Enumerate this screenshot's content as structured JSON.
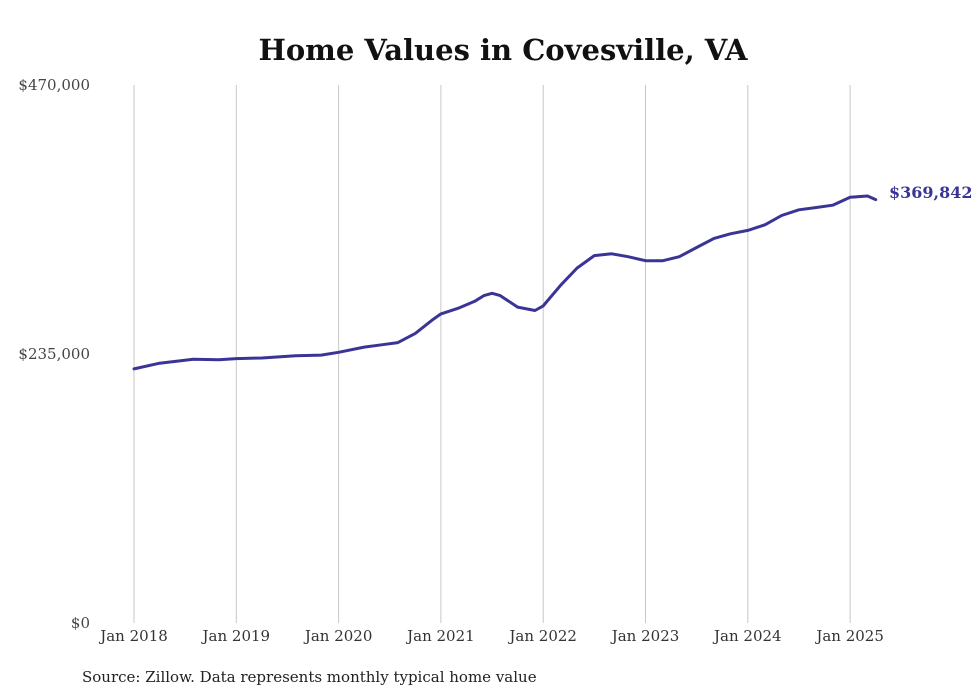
{
  "chart_data": {
    "type": "line",
    "title": "Home Values in Covesville, VA",
    "xlabel": "",
    "ylabel": "",
    "ylim": [
      0,
      470000
    ],
    "y_ticks": [
      "$0",
      "$235,000",
      "$470,000"
    ],
    "x_ticks": [
      "Jan 2018",
      "Jan 2019",
      "Jan 2020",
      "Jan 2021",
      "Jan 2022",
      "Jan 2023",
      "Jan 2024",
      "Jan 2025"
    ],
    "grid": "vertical",
    "line_color": "#3a3497",
    "end_label": "$369,842",
    "series": [
      {
        "values": [
          [
            2018.0,
            222000
          ],
          [
            2018.25,
            227000
          ],
          [
            2018.58,
            230500
          ],
          [
            2018.83,
            230000
          ],
          [
            2019.0,
            231000
          ],
          [
            2019.25,
            231500
          ],
          [
            2019.58,
            233500
          ],
          [
            2019.83,
            234000
          ],
          [
            2020.0,
            236500
          ],
          [
            2020.25,
            241000
          ],
          [
            2020.42,
            243000
          ],
          [
            2020.58,
            245000
          ],
          [
            2020.75,
            253000
          ],
          [
            2020.92,
            265000
          ],
          [
            2021.0,
            270000
          ],
          [
            2021.17,
            275000
          ],
          [
            2021.33,
            281000
          ],
          [
            2021.42,
            286000
          ],
          [
            2021.5,
            288000
          ],
          [
            2021.58,
            286000
          ],
          [
            2021.75,
            276000
          ],
          [
            2021.92,
            273000
          ],
          [
            2022.0,
            277000
          ],
          [
            2022.17,
            295000
          ],
          [
            2022.33,
            310000
          ],
          [
            2022.5,
            321000
          ],
          [
            2022.67,
            322500
          ],
          [
            2022.83,
            320000
          ],
          [
            2023.0,
            316500
          ],
          [
            2023.17,
            316500
          ],
          [
            2023.33,
            320000
          ],
          [
            2023.5,
            328000
          ],
          [
            2023.67,
            336000
          ],
          [
            2023.83,
            340000
          ],
          [
            2024.0,
            343000
          ],
          [
            2024.17,
            348000
          ],
          [
            2024.33,
            356000
          ],
          [
            2024.5,
            361000
          ],
          [
            2024.67,
            363000
          ],
          [
            2024.83,
            365000
          ],
          [
            2025.0,
            372000
          ],
          [
            2025.17,
            373000
          ],
          [
            2025.25,
            369842
          ]
        ]
      }
    ]
  },
  "source_note": "Source: Zillow. Data represents monthly typical home value"
}
